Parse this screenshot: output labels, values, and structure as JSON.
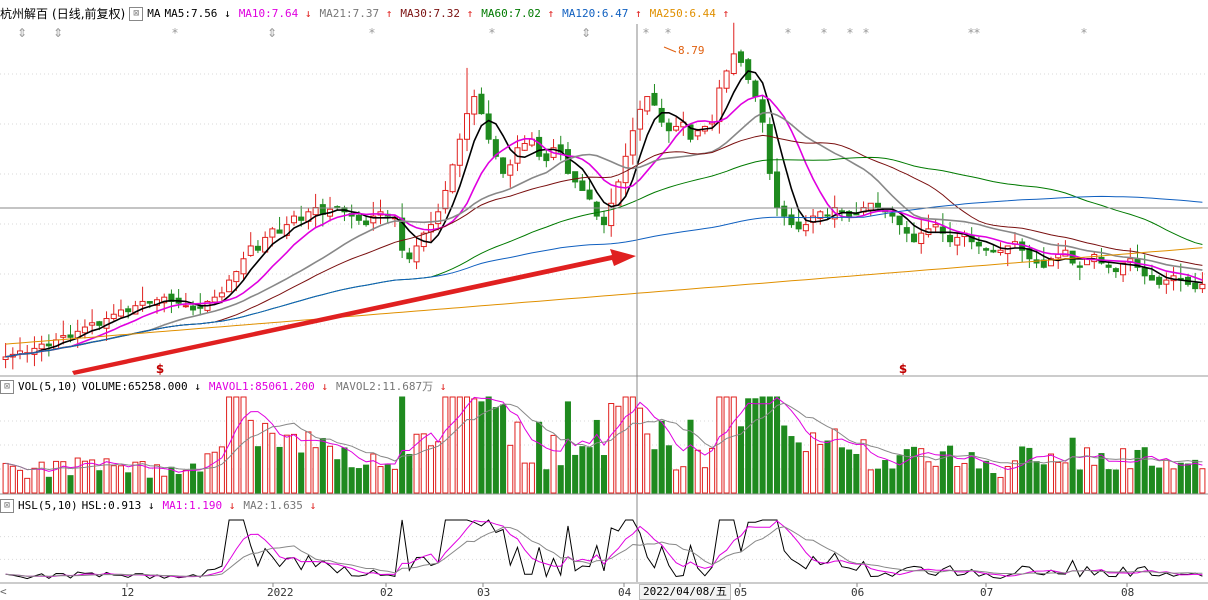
{
  "legend_main": {
    "stock": "杭州解百",
    "period": "(日线,前复权)",
    "ma_label": "MA",
    "items": [
      {
        "text": "MA5:7.56",
        "arrow": "↓",
        "color": "#000000"
      },
      {
        "text": "MA10:7.64",
        "arrow": "↓",
        "color": "#e000e0"
      },
      {
        "text": "MA21:7.37",
        "arrow": "↑",
        "color": "#777777"
      },
      {
        "text": "MA30:7.32",
        "arrow": "↑",
        "color": "#7a1010"
      },
      {
        "text": "MA60:7.02",
        "arrow": "↑",
        "color": "#007a00"
      },
      {
        "text": "MA120:6.47",
        "arrow": "↑",
        "color": "#1060c0"
      },
      {
        "text": "MA250:6.44",
        "arrow": "↑",
        "color": "#e09000"
      }
    ]
  },
  "legend_vol": {
    "name": "VOL(5,10)",
    "items": [
      {
        "text": "VOLUME:65258.000",
        "arrow": "↓",
        "color": "#000000"
      },
      {
        "text": "MAVOL1:85061.200",
        "arrow": "↓",
        "color": "#e000e0"
      },
      {
        "text": "MAVOL2:11.687万",
        "arrow": "↓",
        "color": "#777777"
      }
    ]
  },
  "legend_hsl": {
    "name": "HSL(5,10)",
    "items": [
      {
        "text": "HSL:0.913",
        "arrow": "↓",
        "color": "#000000"
      },
      {
        "text": "MA1:1.190",
        "arrow": "↓",
        "color": "#e000e0"
      },
      {
        "text": "MA2:1.635",
        "arrow": "↓",
        "color": "#777777"
      }
    ]
  },
  "peak_label": "8.79",
  "signal_mark": "$",
  "crosshair_date": "2022/04/08/五",
  "x_axis_labels": [
    "12",
    "2022",
    "02",
    "03",
    "04",
    "05",
    "06",
    "07",
    "08"
  ],
  "colors": {
    "up": "#e0201e",
    "down": "#1f8a1f",
    "arrow": "#e02020"
  },
  "chart_data": {
    "type": "candlestick",
    "title": "杭州解百 (日线,前复权)",
    "peak_high": 8.79,
    "x": [
      "12",
      "2022",
      "02",
      "03",
      "04",
      "05",
      "06",
      "07",
      "08"
    ],
    "series": [
      {
        "name": "MA5",
        "last": 7.56
      },
      {
        "name": "MA10",
        "last": 7.64
      },
      {
        "name": "MA21",
        "last": 7.37
      },
      {
        "name": "MA30",
        "last": 7.32
      },
      {
        "name": "MA60",
        "last": 7.02
      },
      {
        "name": "MA120",
        "last": 6.47
      },
      {
        "name": "MA250",
        "last": 6.44
      }
    ],
    "volume": {
      "VOLUME": 65258.0,
      "MAVOL1": 85061.2,
      "MAVOL2": "11.687万"
    },
    "hsl": {
      "HSL": 0.913,
      "MA1": 1.19,
      "MA2": 1.635
    },
    "closes_approx": [
      5.05,
      5.08,
      5.12,
      5.1,
      5.15,
      5.2,
      5.18,
      5.25,
      5.3,
      5.28,
      5.35,
      5.4,
      5.45,
      5.42,
      5.5,
      5.55,
      5.6,
      5.58,
      5.65,
      5.7,
      5.68,
      5.72,
      5.75,
      5.7,
      5.68,
      5.65,
      5.6,
      5.62,
      5.7,
      5.75,
      5.8,
      5.95,
      6.05,
      6.2,
      6.35,
      6.3,
      6.45,
      6.55,
      6.5,
      6.6,
      6.7,
      6.65,
      6.75,
      6.8,
      6.72,
      6.78,
      6.8,
      6.75,
      6.7,
      6.65,
      6.6,
      6.7,
      6.75,
      6.7,
      6.68,
      6.3,
      6.2,
      6.35,
      6.5,
      6.6,
      6.75,
      7.0,
      7.3,
      7.6,
      7.9,
      8.1,
      7.9,
      7.6,
      7.4,
      7.2,
      7.3,
      7.5,
      7.55,
      7.6,
      7.4,
      7.35,
      7.5,
      7.45,
      7.2,
      7.1,
      7.0,
      6.9,
      6.7,
      6.6,
      6.85,
      7.1,
      7.4,
      7.7,
      7.95,
      8.1,
      8.0,
      7.8,
      7.7,
      7.75,
      7.8,
      7.6,
      7.7,
      7.75,
      7.8,
      8.2,
      8.4,
      8.6,
      8.5,
      8.3,
      8.1,
      7.8,
      7.2,
      6.8,
      6.7,
      6.6,
      6.55,
      6.6,
      6.7,
      6.75,
      6.7,
      6.8,
      6.75,
      6.7,
      6.72,
      6.8,
      6.85,
      6.8,
      6.75,
      6.7,
      6.6,
      6.5,
      6.4,
      6.5,
      6.55,
      6.6,
      6.5,
      6.4,
      6.45,
      6.5,
      6.4,
      6.35,
      6.3,
      6.28,
      6.3,
      6.35,
      6.4,
      6.3,
      6.2,
      6.15,
      6.1,
      6.2,
      6.25,
      6.3,
      6.15,
      6.1,
      6.2,
      6.25,
      6.15,
      6.1,
      6.05,
      6.15,
      6.2,
      6.1,
      6.0,
      5.95,
      5.9,
      5.95,
      6.0,
      5.95,
      5.9,
      5.85,
      5.9
    ]
  }
}
